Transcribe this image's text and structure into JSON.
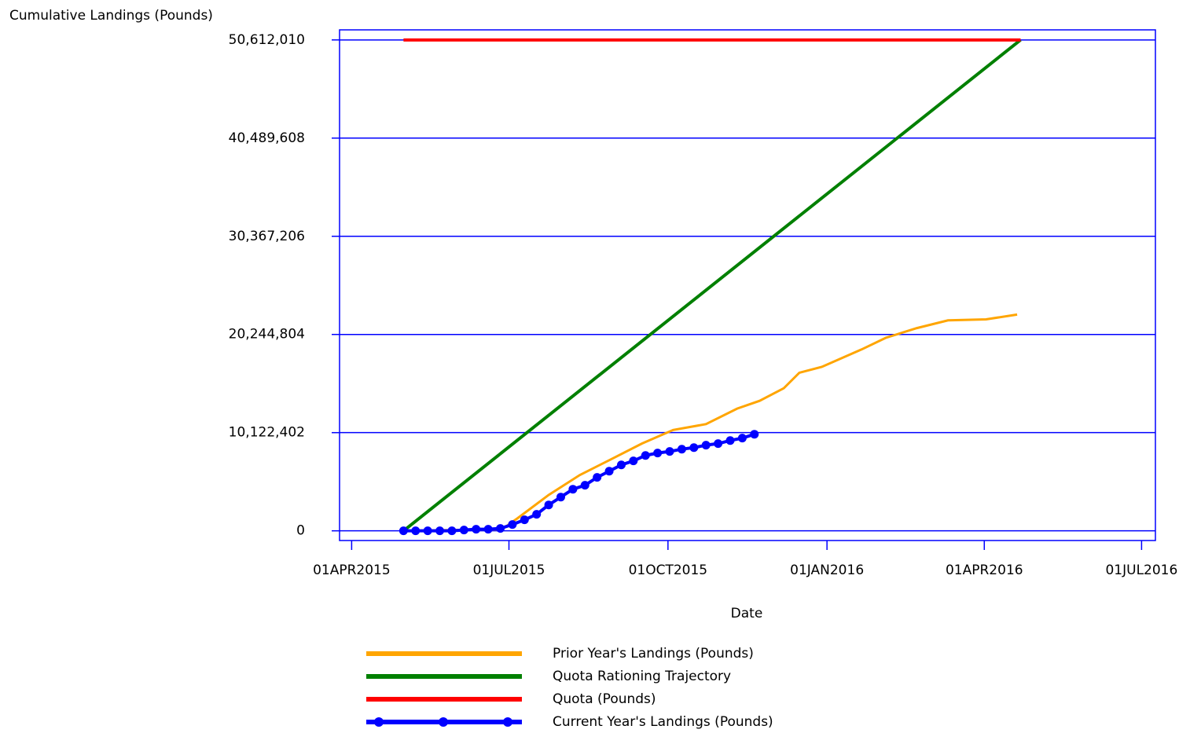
{
  "chart_data": {
    "type": "line",
    "y_label": "Cumulative Landings (Pounds)",
    "x_label": "Date",
    "xlim": [
      "2015-03-25",
      "2016-07-09"
    ],
    "xticks": [
      {
        "value": "2015-04-01",
        "label": "01APR2015"
      },
      {
        "value": "2015-07-01",
        "label": "01JUL2015"
      },
      {
        "value": "2015-10-01",
        "label": "01OCT2015"
      },
      {
        "value": "2016-01-01",
        "label": "01JAN2016"
      },
      {
        "value": "2016-04-01",
        "label": "01APR2016"
      },
      {
        "value": "2016-07-01",
        "label": "01JUL2016"
      }
    ],
    "ylim": [
      -1000000,
      51650000
    ],
    "yticks": [
      0,
      {
        "value": 10122402,
        "label": "10,122,402"
      },
      {
        "value": 20244804,
        "label": "20,244,804"
      },
      {
        "value": 30367206,
        "label": "30,367,206"
      },
      {
        "value": 40489608,
        "label": "40,489,608"
      },
      {
        "value": 50612010,
        "label": "50,612,010"
      }
    ],
    "grid": true,
    "series": [
      {
        "name": "Prior Year's Landings (Pounds)",
        "color": "#ffa500",
        "width": 3,
        "x": [
          "2015-05-01",
          "2015-06-27",
          "2015-07-06",
          "2015-07-24",
          "2015-08-11",
          "2015-08-29",
          "2015-09-16",
          "2015-10-04",
          "2015-10-23",
          "2015-11-10",
          "2015-11-23",
          "2015-12-07",
          "2015-12-16",
          "2015-12-29",
          "2016-01-21",
          "2016-02-04",
          "2016-02-22",
          "2016-03-11",
          "2016-04-02",
          "2016-04-20"
        ],
        "values": [
          0,
          160000,
          1300000,
          3700000,
          5750000,
          7370000,
          9000000,
          10400000,
          11000000,
          12600000,
          13400000,
          14700000,
          16300000,
          16900000,
          18700000,
          19900000,
          20900000,
          21700000,
          21800000,
          22300000
        ]
      },
      {
        "name": "Quota Rationing Trajectory",
        "color": "#008000",
        "width": 4,
        "x": [
          "2015-05-01",
          "2016-04-22"
        ],
        "values": [
          0,
          50612010
        ]
      },
      {
        "name": "Quota (Pounds)",
        "color": "#ff0000",
        "width": 4,
        "x": [
          "2015-05-01",
          "2016-04-22"
        ],
        "values": [
          50612010,
          50612010
        ]
      },
      {
        "name": "Current Year's Landings (Pounds)",
        "color": "#0000ff",
        "width": 4,
        "marker": true,
        "x": [
          "2015-05-01",
          "2015-05-08",
          "2015-05-15",
          "2015-05-22",
          "2015-05-29",
          "2015-06-05",
          "2015-06-12",
          "2015-06-19",
          "2015-06-26",
          "2015-07-03",
          "2015-07-10",
          "2015-07-17",
          "2015-07-24",
          "2015-07-31",
          "2015-08-07",
          "2015-08-14",
          "2015-08-21",
          "2015-08-28",
          "2015-09-04",
          "2015-09-11",
          "2015-09-18",
          "2015-09-25",
          "2015-10-02",
          "2015-10-09",
          "2015-10-16",
          "2015-10-23",
          "2015-10-30",
          "2015-11-06",
          "2015-11-13",
          "2015-11-20"
        ],
        "values": [
          0,
          0,
          0,
          0,
          0,
          81000,
          162000,
          162000,
          243000,
          648000,
          1134000,
          1700000,
          2670000,
          3480000,
          4290000,
          4700000,
          5510000,
          6150000,
          6800000,
          7210000,
          7770000,
          8020000,
          8180000,
          8420000,
          8580000,
          8830000,
          8990000,
          9310000,
          9560000,
          9960000
        ]
      }
    ]
  }
}
